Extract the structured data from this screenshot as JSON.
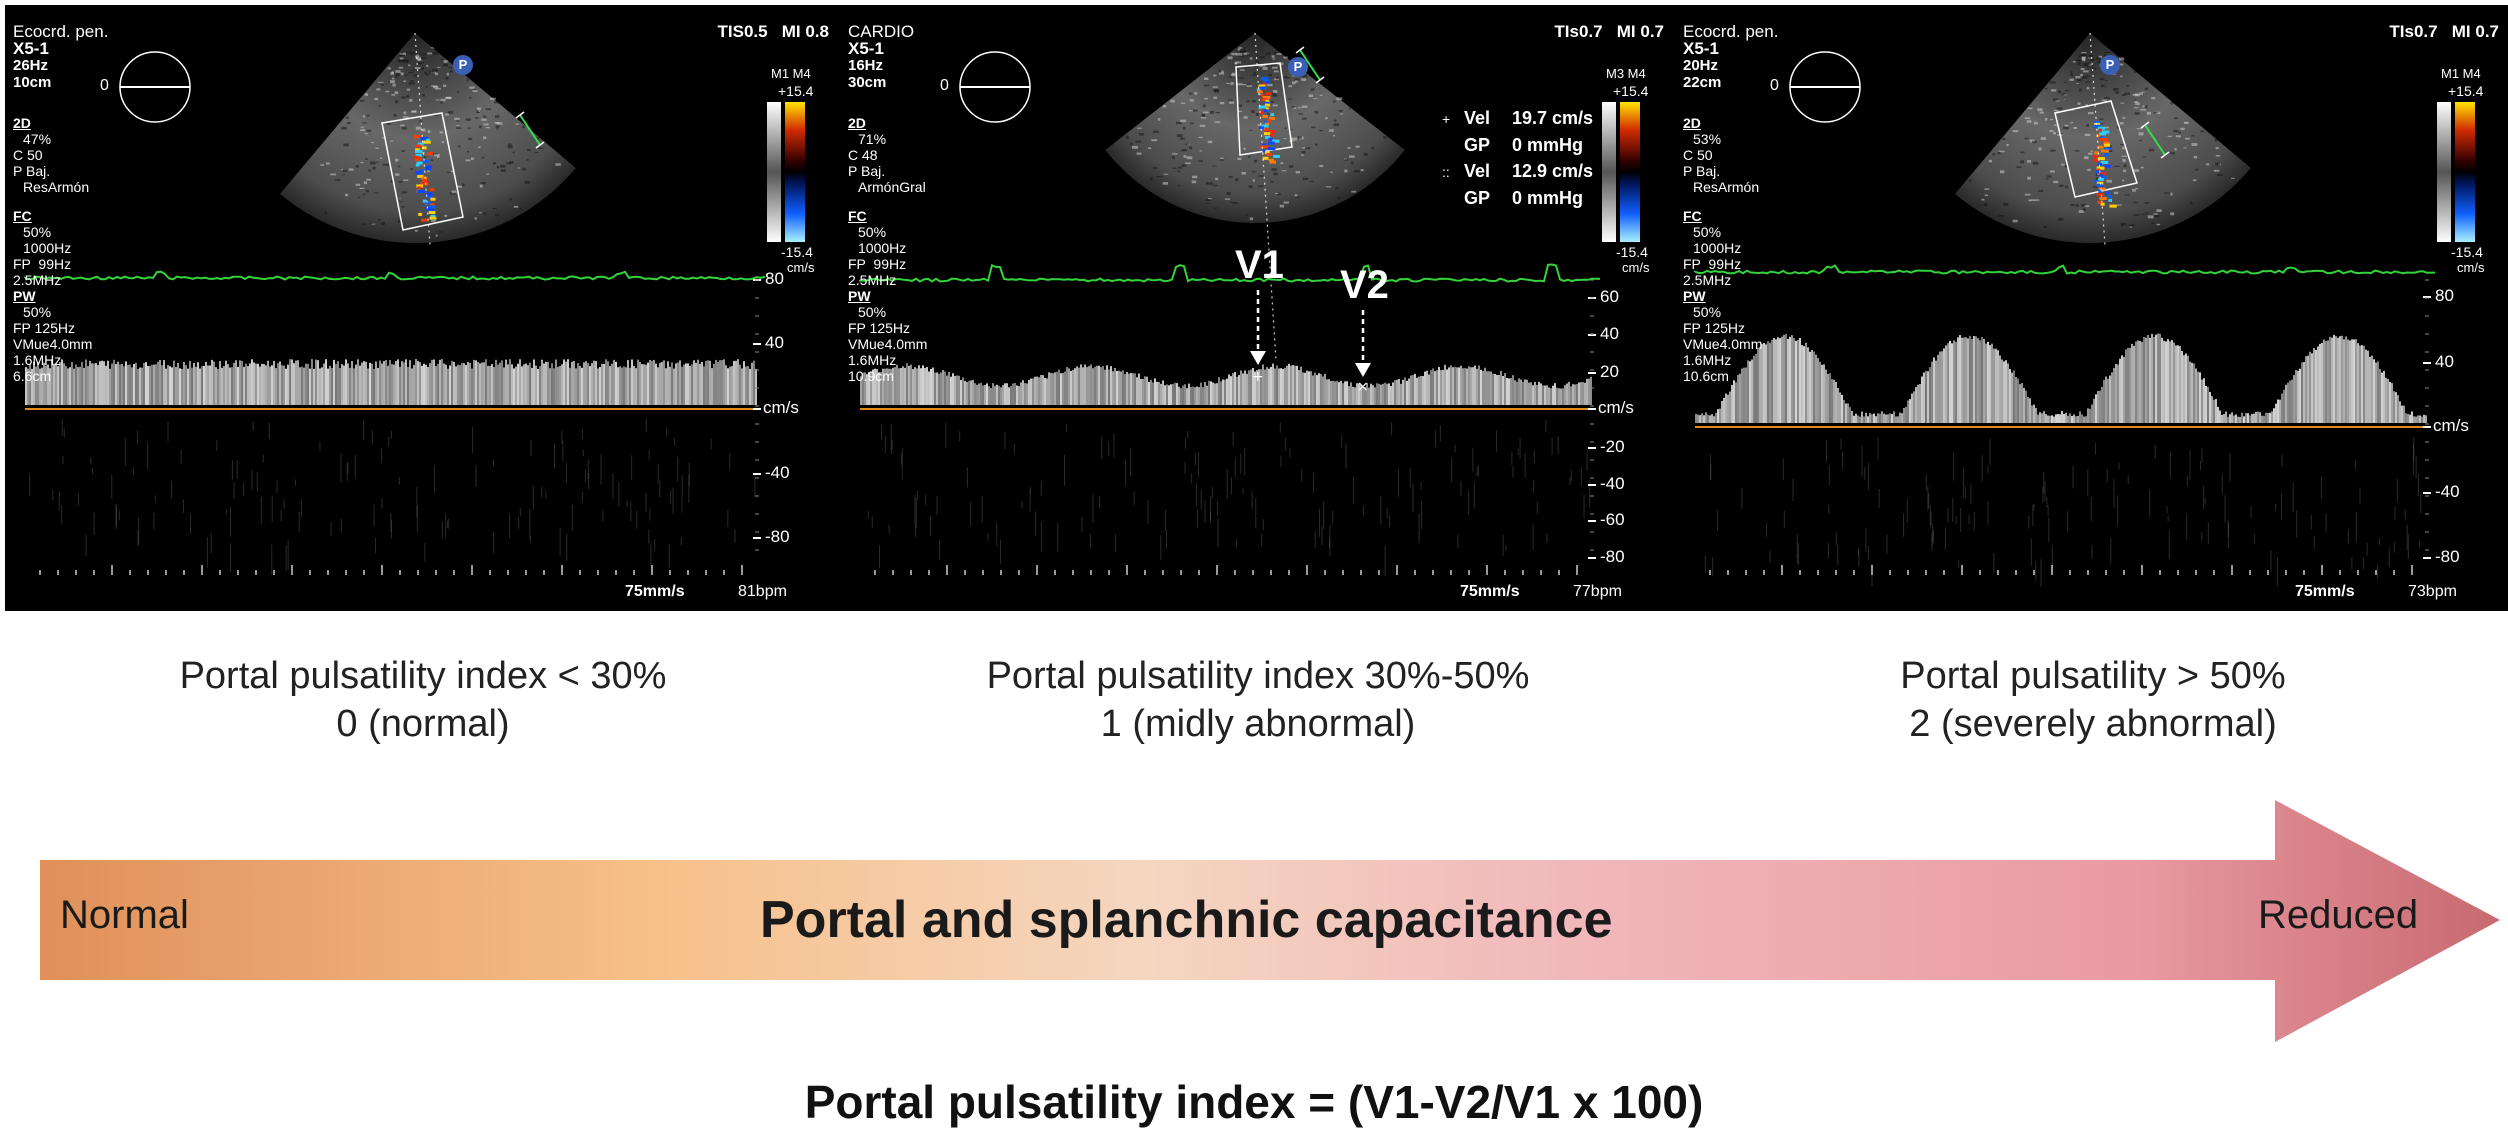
{
  "panels": [
    {
      "header_left": [
        "Ecocrd. pen.",
        "X5-1",
        "26Hz",
        "10cm"
      ],
      "header_right": "TIS0.5   MI 0.8",
      "params_2d": [
        "2D",
        "47%",
        "C 50",
        "P Baj.",
        "ResArmón"
      ],
      "params_fc": [
        "FC",
        "50%",
        "1000Hz",
        "FP  99Hz",
        "2.5MHz"
      ],
      "params_pw": [
        "PW",
        "50%",
        "FP 125Hz",
        "VMue4.0mm",
        "1.6MHz",
        "6.6cm"
      ],
      "colorbar_top": "M1 M4",
      "colorbar_max": "+15.4",
      "colorbar_min": "-15.4",
      "colorbar_unit": "cm/s",
      "ticks": [
        "80",
        "40",
        "cm/s",
        "-40",
        "-80"
      ],
      "sweep": "75mm/s",
      "bpm": "81bpm",
      "pattern": "continuous",
      "caption_line1": "Portal pulsatility index < 30%",
      "caption_line2": "0 (normal)"
    },
    {
      "header_left": [
        "CARDIO",
        "X5-1",
        "16Hz",
        "30cm"
      ],
      "header_right": "TIs0.7   MI 0.7",
      "params_2d": [
        "2D",
        "71%",
        "C 48",
        "P Baj.",
        "ArmónGral"
      ],
      "params_fc": [
        "FC",
        "50%",
        "1000Hz",
        "FP  99Hz",
        "2.5MHz"
      ],
      "params_pw": [
        "PW",
        "50%",
        "FP 125Hz",
        "VMue4.0mm",
        "1.6MHz",
        "10.9cm"
      ],
      "colorbar_top": "M3 M4",
      "colorbar_max": "+15.4",
      "colorbar_min": "-15.4",
      "colorbar_unit": "cm/s",
      "ticks": [
        "60",
        "40",
        "20",
        "cm/s",
        "-20",
        "-40",
        "-60",
        "-80"
      ],
      "sweep": "75mm/s",
      "bpm": "77bpm",
      "pattern": "mild",
      "measurements": [
        {
          "symbol": "+",
          "label": "Vel",
          "value": "19.7 cm/s"
        },
        {
          "symbol": "",
          "label": "GP",
          "value": "0 mmHg"
        },
        {
          "symbol": "::",
          "label": "Vel",
          "value": "12.9 cm/s"
        },
        {
          "symbol": "",
          "label": "GP",
          "value": "0 mmHg"
        }
      ],
      "v1_label": "V1",
      "v2_label": "V2",
      "caption_line1": "Portal pulsatility index 30%-50%",
      "caption_line2": "1 (midly abnormal)"
    },
    {
      "header_left": [
        "Ecocrd. pen.",
        "X5-1",
        "20Hz",
        "22cm"
      ],
      "header_right": "TIs0.7   MI 0.7",
      "params_2d": [
        "2D",
        "53%",
        "C 50",
        "P Baj.",
        "ResArmón"
      ],
      "params_fc": [
        "FC",
        "50%",
        "1000Hz",
        "FP  99Hz",
        "2.5MHz"
      ],
      "params_pw": [
        "PW",
        "50%",
        "FP 125Hz",
        "VMue4.0mm",
        "1.6MHz",
        "10.6cm"
      ],
      "colorbar_top": "M1 M4",
      "colorbar_max": "+15.4",
      "colorbar_min": "-15.4",
      "colorbar_unit": "cm/s",
      "ticks": [
        "80",
        "40",
        "cm/s",
        "-40",
        "-80"
      ],
      "sweep": "75mm/s",
      "bpm": "73bpm",
      "pattern": "severe",
      "caption_line1": "Portal pulsatility > 50%",
      "caption_line2": "2 (severely abnormal)"
    }
  ],
  "arrow": {
    "left_label": "Normal",
    "center_label": "Portal and splanchnic capacitance",
    "right_label": "Reduced",
    "colors": [
      "#e0905a",
      "#f7c08a",
      "#f5d6c0",
      "#f1b8bb",
      "#e99aa2",
      "#c86a70"
    ]
  },
  "formula": "Portal pulsatility index =  (V1-V2/V1 x 100)",
  "logo_letter": "P"
}
